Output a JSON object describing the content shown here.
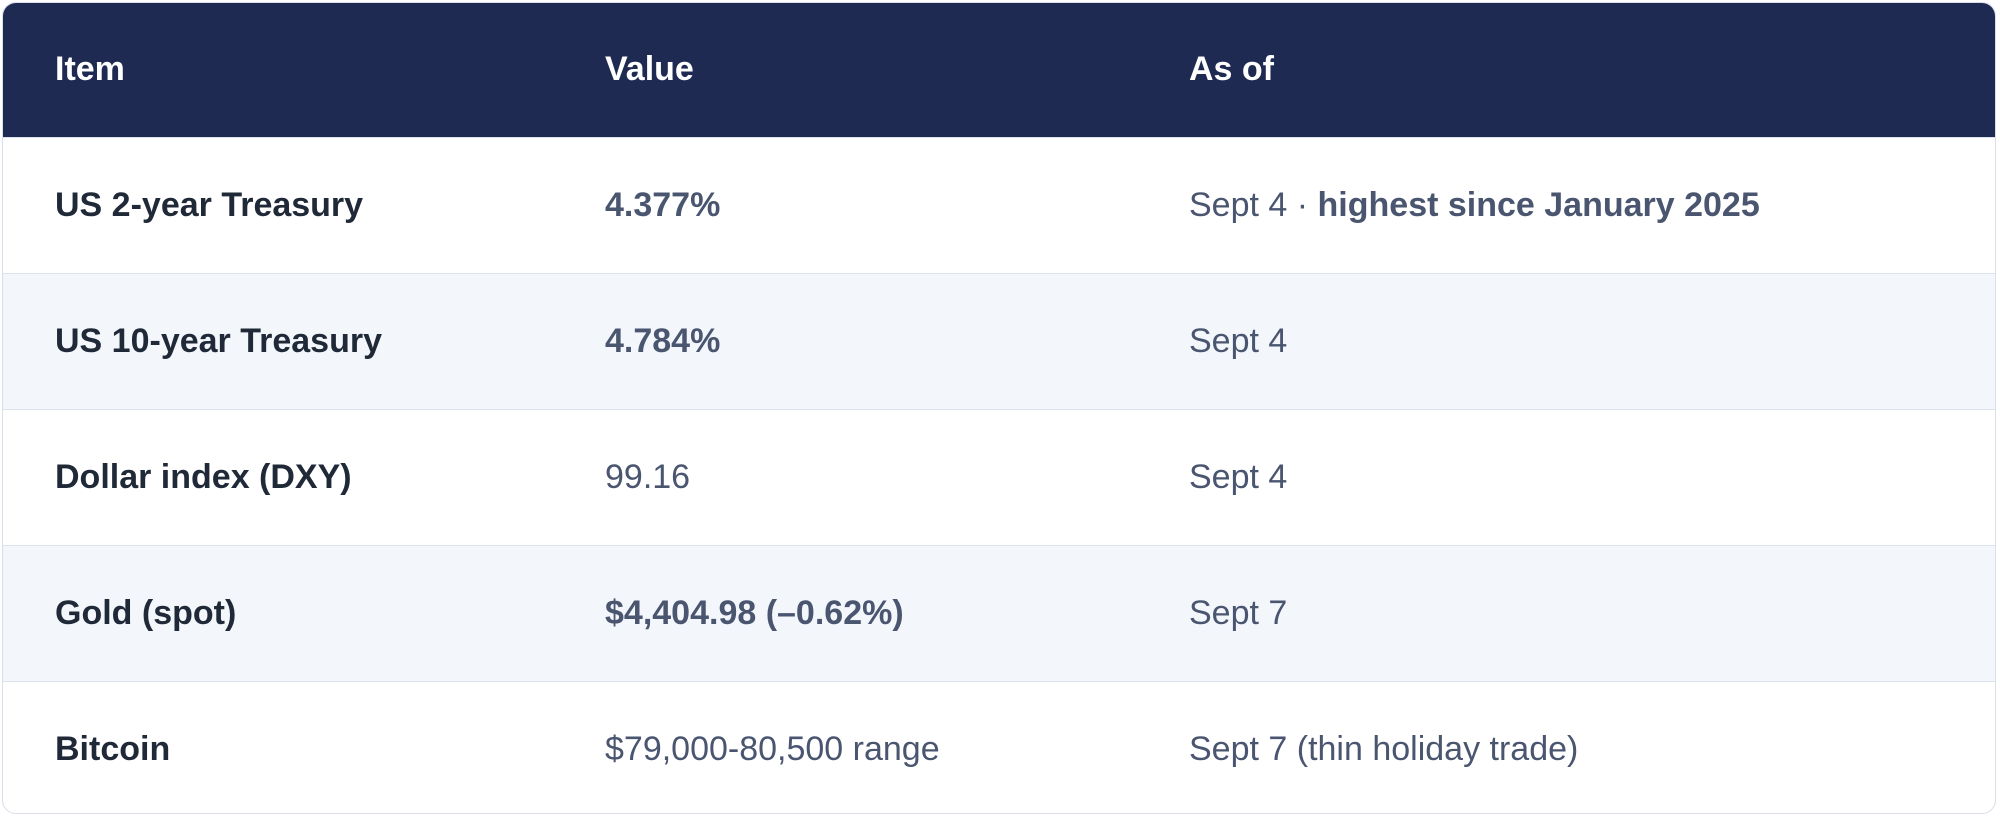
{
  "table": {
    "header": [
      "Item",
      "Value",
      "As of"
    ],
    "rows": [
      [
        "US 2-year Treasury",
        "4.377%",
        [
          "Sept 4 ·",
          "highest since January 2025"
        ]
      ],
      [
        "US 10-year Treasury",
        "4.784%",
        [
          "Sept 4"
        ]
      ],
      [
        "Dollar index (DXY)",
        "99.16",
        [
          "Sept 4"
        ]
      ],
      [
        "Gold (spot)",
        "$4,404.98 (–0.62%)",
        [
          "Sept 7"
        ]
      ],
      [
        "Bitcoin",
        "$79,000-80,500 range",
        [
          "Sept 7 (thin holiday trade)"
        ]
      ]
    ]
  }
}
